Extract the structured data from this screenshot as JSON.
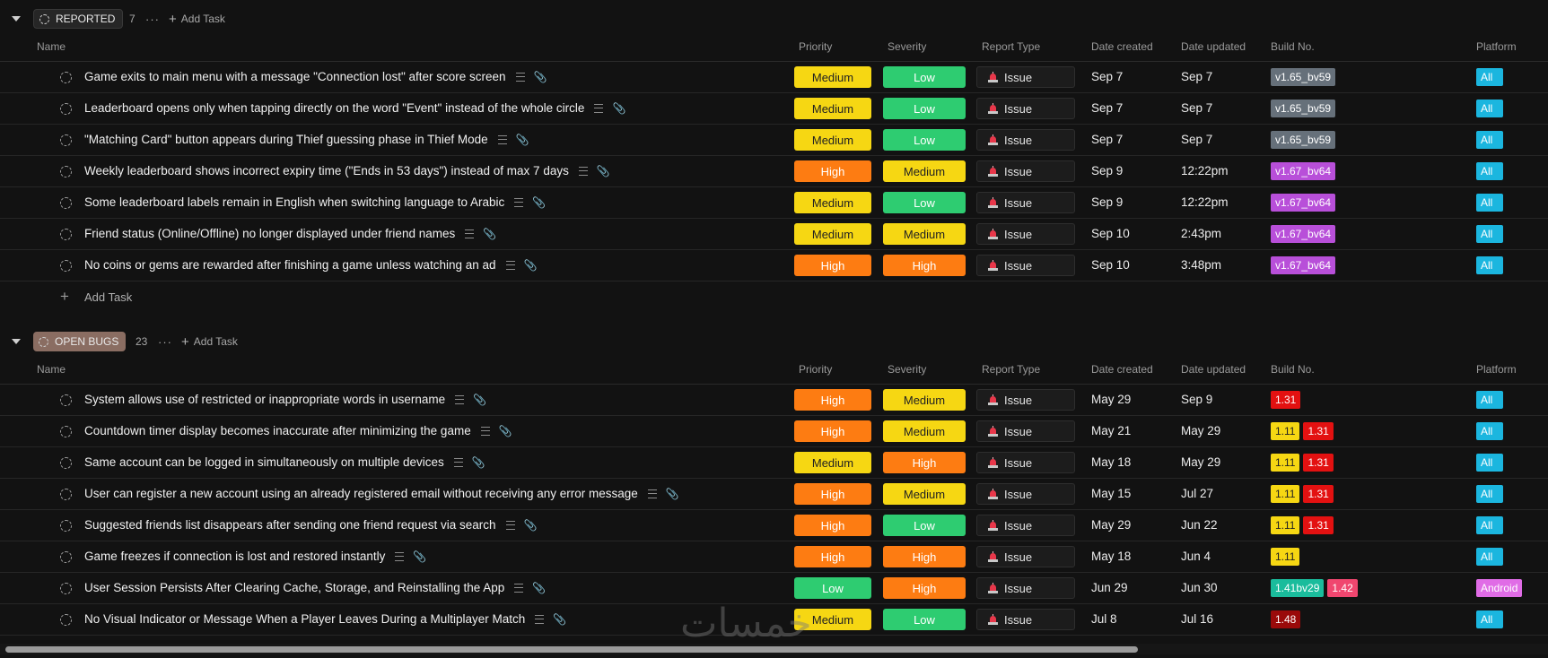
{
  "columns": {
    "name": "Name",
    "priority": "Priority",
    "severity": "Severity",
    "report_type": "Report Type",
    "date_created": "Date created",
    "date_updated": "Date updated",
    "build_no": "Build No.",
    "platform": "Platform"
  },
  "groups": [
    {
      "status": "REPORTED",
      "count": "7",
      "more": "···",
      "add_task": "Add Task",
      "add_task_row": "Add Task",
      "tasks": [
        {
          "name": "Game exits to main menu with a message \"Connection lost\" after score screen",
          "priority": "Medium",
          "severity": "Low",
          "report_type": "Issue",
          "date_created": "Sep 7",
          "date_updated": "Sep 7",
          "builds": [
            {
              "label": "v1.65_bv59",
              "color": "#66707a"
            }
          ],
          "platform": "All"
        },
        {
          "name": "Leaderboard opens only when tapping directly on the word \"Event\" instead of the whole circle",
          "priority": "Medium",
          "severity": "Low",
          "report_type": "Issue",
          "date_created": "Sep 7",
          "date_updated": "Sep 7",
          "builds": [
            {
              "label": "v1.65_bv59",
              "color": "#66707a"
            }
          ],
          "platform": "All"
        },
        {
          "name": "\"Matching Card\" button appears during Thief guessing phase in Thief Mode",
          "priority": "Medium",
          "severity": "Low",
          "report_type": "Issue",
          "date_created": "Sep 7",
          "date_updated": "Sep 7",
          "builds": [
            {
              "label": "v1.65_bv59",
              "color": "#66707a"
            }
          ],
          "platform": "All"
        },
        {
          "name": "Weekly leaderboard shows incorrect expiry time (\"Ends in 53 days\") instead of max 7 days",
          "priority": "High",
          "severity": "Medium",
          "report_type": "Issue",
          "date_created": "Sep 9",
          "date_updated": "12:22pm",
          "builds": [
            {
              "label": "v1.67_bv64",
              "color": "#b84fd9"
            }
          ],
          "platform": "All"
        },
        {
          "name": "Some leaderboard labels remain in English when switching language to Arabic",
          "priority": "Medium",
          "severity": "Low",
          "report_type": "Issue",
          "date_created": "Sep 9",
          "date_updated": "12:22pm",
          "builds": [
            {
              "label": "v1.67_bv64",
              "color": "#b84fd9"
            }
          ],
          "platform": "All"
        },
        {
          "name": "Friend status (Online/Offline) no longer displayed under friend names",
          "priority": "Medium",
          "severity": "Medium",
          "report_type": "Issue",
          "date_created": "Sep 10",
          "date_updated": "2:43pm",
          "builds": [
            {
              "label": "v1.67_bv64",
              "color": "#b84fd9"
            }
          ],
          "platform": "All"
        },
        {
          "name": "No coins or gems are rewarded after finishing a game unless watching an ad",
          "priority": "High",
          "severity": "High",
          "report_type": "Issue",
          "date_created": "Sep 10",
          "date_updated": "3:48pm",
          "builds": [
            {
              "label": "v1.67_bv64",
              "color": "#b84fd9"
            }
          ],
          "platform": "All"
        }
      ]
    },
    {
      "status": "OPEN BUGS",
      "count": "23",
      "more": "···",
      "add_task": "Add Task",
      "tasks": [
        {
          "name": "System allows use of restricted or inappropriate words in username",
          "priority": "High",
          "severity": "Medium",
          "report_type": "Issue",
          "date_created": "May 29",
          "date_updated": "Sep 9",
          "builds": [
            {
              "label": "1.31",
              "color": "#e31111"
            }
          ],
          "platform": "All"
        },
        {
          "name": "Countdown timer display becomes inaccurate after minimizing the game",
          "priority": "High",
          "severity": "Medium",
          "report_type": "Issue",
          "date_created": "May 21",
          "date_updated": "May 29",
          "builds": [
            {
              "label": "1.11",
              "color": "#f6d713"
            },
            {
              "label": "1.31",
              "color": "#e31111"
            }
          ],
          "platform": "All"
        },
        {
          "name": "Same account can be logged in simultaneously on multiple devices",
          "priority": "Medium",
          "severity": "High",
          "report_type": "Issue",
          "date_created": "May 18",
          "date_updated": "May 29",
          "builds": [
            {
              "label": "1.11",
              "color": "#f6d713"
            },
            {
              "label": "1.31",
              "color": "#e31111"
            }
          ],
          "platform": "All"
        },
        {
          "name": "User can register a new account using an already registered email without receiving any error message",
          "priority": "High",
          "severity": "Medium",
          "report_type": "Issue",
          "date_created": "May 15",
          "date_updated": "Jul 27",
          "builds": [
            {
              "label": "1.11",
              "color": "#f6d713"
            },
            {
              "label": "1.31",
              "color": "#e31111"
            }
          ],
          "platform": "All"
        },
        {
          "name": "Suggested friends list disappears after sending one friend request via search",
          "priority": "High",
          "severity": "Low",
          "report_type": "Issue",
          "date_created": "May 29",
          "date_updated": "Jun 22",
          "builds": [
            {
              "label": "1.11",
              "color": "#f6d713"
            },
            {
              "label": "1.31",
              "color": "#e31111"
            }
          ],
          "platform": "All"
        },
        {
          "name": "Game freezes if connection is lost and restored instantly",
          "priority": "High",
          "severity": "High",
          "report_type": "Issue",
          "date_created": "May 18",
          "date_updated": "Jun 4",
          "builds": [
            {
              "label": "1.11",
              "color": "#f6d713"
            }
          ],
          "platform": "All"
        },
        {
          "name": "User Session Persists After Clearing Cache, Storage, and Reinstalling the App",
          "priority": "Low",
          "severity": "High",
          "report_type": "Issue",
          "date_created": "Jun 29",
          "date_updated": "Jun 30",
          "builds": [
            {
              "label": "1.41bv29",
              "color": "#1abc9c"
            },
            {
              "label": "1.42",
              "color": "#f0466f"
            }
          ],
          "platform": "Android"
        },
        {
          "name": "No Visual Indicator or Message When a Player Leaves During a Multiplayer Match",
          "priority": "Medium",
          "severity": "Low",
          "report_type": "Issue",
          "date_created": "Jul 8",
          "date_updated": "Jul 16",
          "builds": [
            {
              "label": "1.48",
              "color": "#9a0a0a"
            }
          ],
          "platform": "All"
        }
      ]
    }
  ],
  "watermark": "خمسات"
}
